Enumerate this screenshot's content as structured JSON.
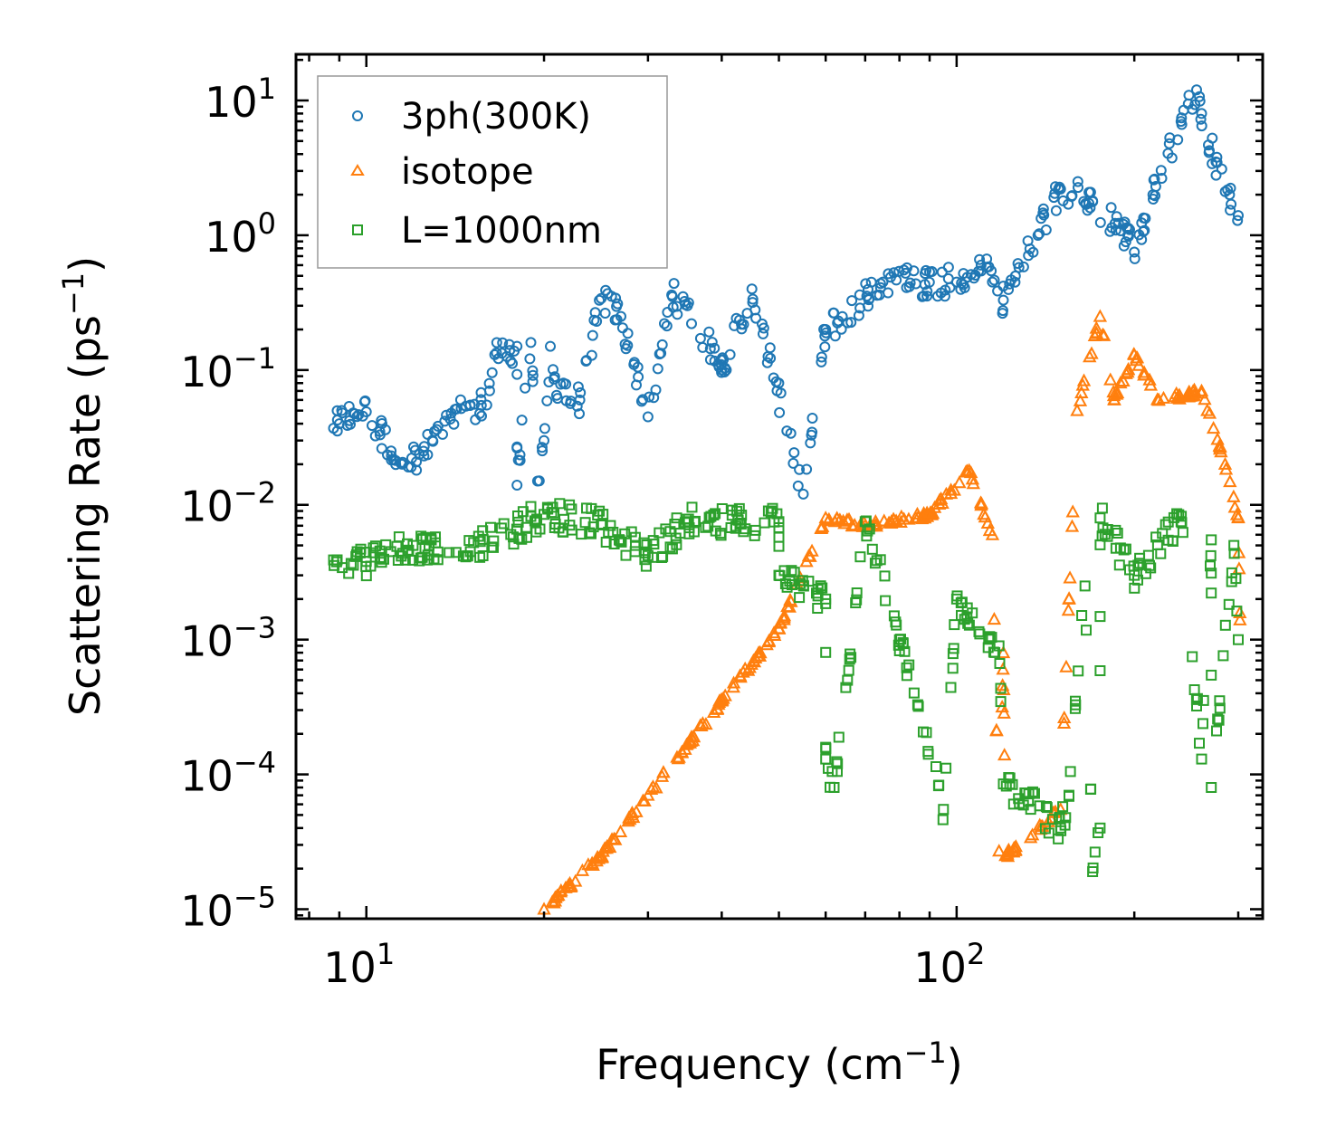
{
  "chart_data": {
    "type": "scatter",
    "title": "",
    "xlabel": "Frequency (cm",
    "xlabel_sup": "−1",
    "xlabel_end": ")",
    "ylabel": "Scattering Rate (ps",
    "ylabel_sup": "−1",
    "ylabel_end": ")",
    "xscale": "log",
    "yscale": "log",
    "xlim": [
      7.6,
      330
    ],
    "ylim": [
      8.5e-06,
      22
    ],
    "grid": false,
    "legend_position": "top-left",
    "xticks": [
      {
        "base": "10",
        "exp": "1"
      },
      {
        "base": "10",
        "exp": "2"
      }
    ],
    "yticks": [
      {
        "base": "10",
        "exp": "−5"
      },
      {
        "base": "10",
        "exp": "−4"
      },
      {
        "base": "10",
        "exp": "−3"
      },
      {
        "base": "10",
        "exp": "−2"
      },
      {
        "base": "10",
        "exp": "−1"
      },
      {
        "base": "10",
        "exp": "0"
      },
      {
        "base": "10",
        "exp": "1"
      }
    ],
    "series": [
      {
        "name": "3ph(300K)",
        "marker": "circle",
        "color": "#1f77b4",
        "anchor_points": [
          [
            8.8,
            0.037
          ],
          [
            9.0,
            0.04
          ],
          [
            9.5,
            0.048
          ],
          [
            10.0,
            0.049
          ],
          [
            11.5,
            0.02
          ],
          [
            12.5,
            0.025
          ],
          [
            15.0,
            0.055
          ],
          [
            16.0,
            0.055
          ],
          [
            16.5,
            0.13
          ],
          [
            17.5,
            0.14
          ],
          [
            18.0,
            0.15
          ],
          [
            19.0,
            0.16
          ],
          [
            20.5,
            0.15
          ],
          [
            20.0,
            0.03
          ],
          [
            18.0,
            0.014
          ],
          [
            19.5,
            0.015
          ],
          [
            21.0,
            0.065
          ],
          [
            23.0,
            0.06
          ],
          [
            25.0,
            0.34
          ],
          [
            27.0,
            0.25
          ],
          [
            30.0,
            0.045
          ],
          [
            33.0,
            0.35
          ],
          [
            35.0,
            0.3
          ],
          [
            40.0,
            0.1
          ],
          [
            45.0,
            0.4
          ],
          [
            55.0,
            0.012
          ],
          [
            60.0,
            0.2
          ],
          [
            75.0,
            0.45
          ],
          [
            100.0,
            0.45
          ],
          [
            110.0,
            0.6
          ],
          [
            115.0,
            0.45
          ],
          [
            120.0,
            0.33
          ],
          [
            150.0,
            2.2
          ],
          [
            170.0,
            1.8
          ],
          [
            195.0,
            1.0
          ],
          [
            200.0,
            0.75
          ],
          [
            215.0,
            2.0
          ],
          [
            240.0,
            7.0
          ],
          [
            255.0,
            12.0
          ],
          [
            260.0,
            8.0
          ],
          [
            275.0,
            3.5
          ],
          [
            290.0,
            2.0
          ],
          [
            300.0,
            1.4
          ]
        ]
      },
      {
        "name": "isotope",
        "marker": "triangle",
        "color": "#ff7f0e",
        "anchor_points": [
          [
            20.0,
            1e-05
          ],
          [
            25.0,
            2.5e-05
          ],
          [
            30.0,
            7e-05
          ],
          [
            40.0,
            0.00035
          ],
          [
            50.0,
            0.0012
          ],
          [
            60.0,
            0.008
          ],
          [
            70.0,
            0.007
          ],
          [
            90.0,
            0.0085
          ],
          [
            105.0,
            0.018
          ],
          [
            115.0,
            0.006
          ],
          [
            120.0,
            0.0008
          ],
          [
            118.0,
            2.7e-05
          ],
          [
            121.0,
            2.5e-05
          ],
          [
            150.0,
            5.5e-05
          ],
          [
            155.0,
            0.002
          ],
          [
            160.0,
            0.05
          ],
          [
            175.0,
            0.25
          ],
          [
            185.0,
            0.06
          ],
          [
            200.0,
            0.13
          ],
          [
            220.0,
            0.06
          ],
          [
            260.0,
            0.07
          ],
          [
            285.0,
            0.02
          ],
          [
            300.0,
            0.008
          ],
          [
            302.0,
            0.0014
          ]
        ]
      },
      {
        "name": "L=1000nm",
        "marker": "square",
        "color": "#2ca02c",
        "anchor_points": [
          [
            8.8,
            0.0039
          ],
          [
            10.0,
            0.0038
          ],
          [
            11.0,
            0.0045
          ],
          [
            12.0,
            0.005
          ],
          [
            15.0,
            0.0045
          ],
          [
            20.0,
            0.0085
          ],
          [
            25.0,
            0.0072
          ],
          [
            35.0,
            0.0075
          ],
          [
            50.0,
            0.0075
          ],
          [
            70.0,
            0.0075
          ],
          [
            30.0,
            0.0042
          ],
          [
            50.0,
            0.003
          ],
          [
            60.0,
            0.002
          ],
          [
            80.0,
            0.001
          ],
          [
            100.0,
            0.002
          ],
          [
            118.0,
            0.0009
          ],
          [
            60.0,
            0.00013
          ],
          [
            62.0,
            8e-05
          ],
          [
            95.0,
            5.5e-05
          ],
          [
            120.0,
            8.5e-05
          ],
          [
            150.0,
            4e-05
          ],
          [
            155.0,
            7e-05
          ],
          [
            170.0,
            1.9e-05
          ],
          [
            175.0,
            4e-05
          ],
          [
            165.0,
            0.0025
          ],
          [
            175.0,
            0.008
          ],
          [
            200.0,
            0.003
          ],
          [
            240.0,
            0.0075
          ],
          [
            270.0,
            0.0055
          ],
          [
            295.0,
            0.005
          ],
          [
            300.0,
            0.001
          ],
          [
            260.0,
            0.00013
          ],
          [
            270.0,
            8e-05
          ]
        ]
      }
    ]
  }
}
